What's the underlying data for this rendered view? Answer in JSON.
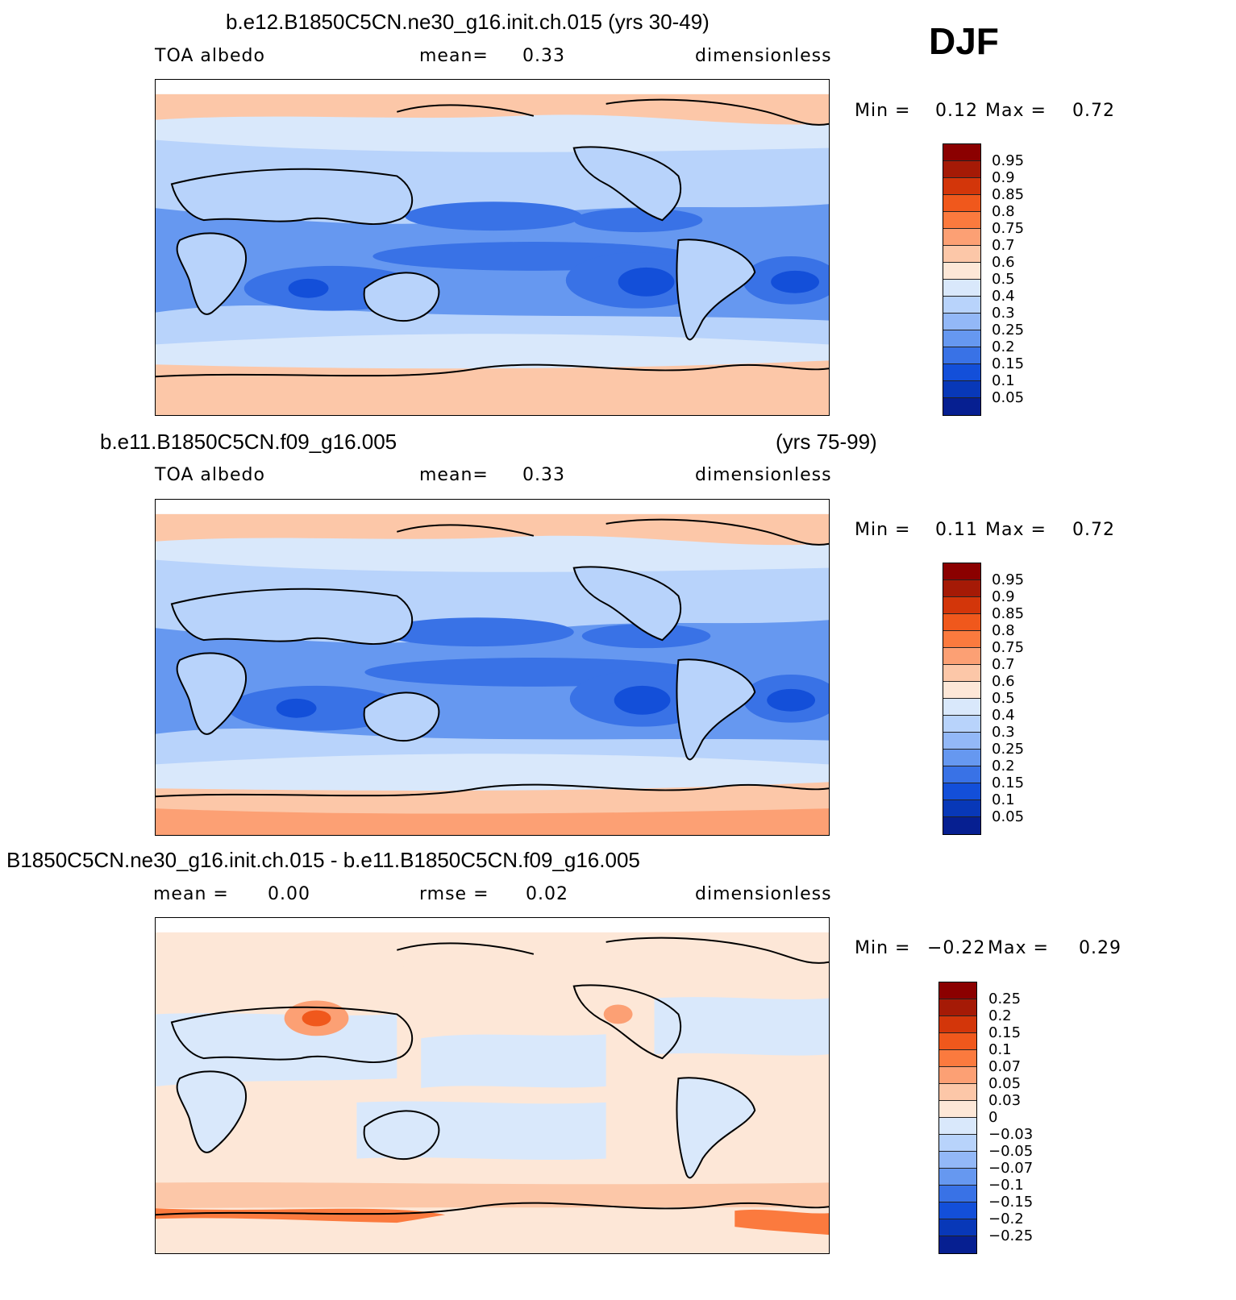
{
  "season": "DJF",
  "panels": [
    {
      "title": "b.e12.B1850C5CN.ne30_g16.init.ch.015 (yrs 30-49)",
      "title_right": "",
      "left_label": "TOA albedo",
      "center_label": "mean=",
      "center_value": "0.33",
      "right_label": "dimensionless",
      "min_label": "Min =",
      "min_value": "0.12",
      "max_label": "Max =",
      "max_value": "0.72",
      "colorbar_labels": [
        "0.95",
        "0.9",
        "0.85",
        "0.8",
        "0.75",
        "0.7",
        "0.6",
        "0.5",
        "0.4",
        "0.3",
        "0.25",
        "0.2",
        "0.15",
        "0.1",
        "0.05"
      ]
    },
    {
      "title": "b.e11.B1850C5CN.f09_g16.005",
      "title_right": "(yrs 75-99)",
      "left_label": "TOA albedo",
      "center_label": "mean=",
      "center_value": "0.33",
      "right_label": "dimensionless",
      "min_label": "Min =",
      "min_value": "0.11",
      "max_label": "Max =",
      "max_value": "0.72",
      "colorbar_labels": [
        "0.95",
        "0.9",
        "0.85",
        "0.8",
        "0.75",
        "0.7",
        "0.6",
        "0.5",
        "0.4",
        "0.3",
        "0.25",
        "0.2",
        "0.15",
        "0.1",
        "0.05"
      ]
    },
    {
      "title": "B1850C5CN.ne30_g16.init.ch.015 - b.e11.B1850C5CN.f09_g16.005",
      "title_right": "",
      "left_label": "mean =",
      "left_value": "0.00",
      "center_label": "rmse =",
      "center_value": "0.02",
      "right_label": "dimensionless",
      "min_label": "Min =",
      "min_value": "−0.22",
      "max_label": "Max =",
      "max_value": "0.29",
      "colorbar_labels": [
        "0.25",
        "0.2",
        "0.15",
        "0.1",
        "0.07",
        "0.05",
        "0.03",
        "0",
        "−0.03",
        "−0.05",
        "−0.07",
        "−0.1",
        "−0.15",
        "−0.2",
        "−0.25"
      ]
    }
  ],
  "colors": {
    "abs_scale": [
      "#8b0000",
      "#a51a06",
      "#d3360a",
      "#f0581c",
      "#fb7a3e",
      "#fca074",
      "#fcc7a8",
      "#fde7d7",
      "#d9e8fb",
      "#b8d3fb",
      "#93b8f7",
      "#6698f0",
      "#3972e6",
      "#134fd9",
      "#0838b8",
      "#061f91"
    ],
    "diff_scale": [
      "#8b0000",
      "#a51a06",
      "#d3360a",
      "#f0581c",
      "#fb7a3e",
      "#fca074",
      "#fcc7a8",
      "#fde7d7",
      "#d9e8fb",
      "#b8d3fb",
      "#93b8f7",
      "#6698f0",
      "#3972e6",
      "#134fd9",
      "#0838b8",
      "#061f91"
    ],
    "coastline": "#000000"
  }
}
